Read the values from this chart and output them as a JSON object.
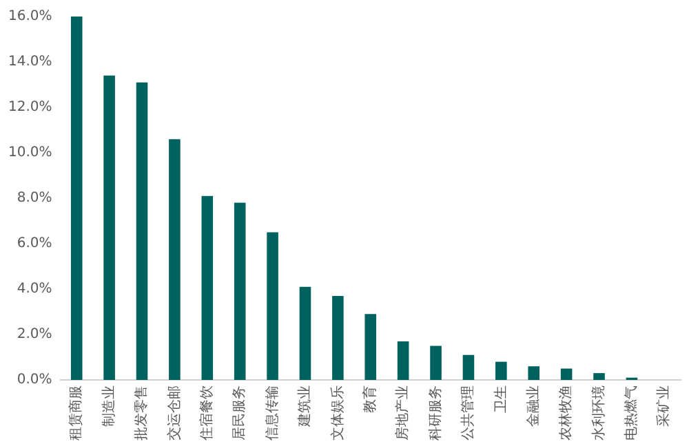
{
  "chart_data": {
    "type": "bar",
    "categories": [
      "租赁商服",
      "制造业",
      "批发零售",
      "交运仓邮",
      "住宿餐饮",
      "居民服务",
      "信息传输",
      "建筑业",
      "文体娱乐",
      "教育",
      "房地产业",
      "科研服务",
      "公共管理",
      "卫生",
      "金融业",
      "农林牧渔",
      "水利环境",
      "电热燃气",
      "采矿业"
    ],
    "values": [
      16.0,
      13.4,
      13.1,
      10.6,
      8.1,
      7.8,
      6.5,
      4.1,
      3.7,
      2.9,
      1.7,
      1.5,
      1.1,
      0.8,
      0.6,
      0.5,
      0.3,
      0.1,
      0
    ],
    "color": "#00625f",
    "ylim": [
      0,
      16
    ],
    "yticks": [
      {
        "value": 0,
        "label": "0.0%"
      },
      {
        "value": 2,
        "label": "2.0%"
      },
      {
        "value": 4,
        "label": "4.0%"
      },
      {
        "value": 6,
        "label": "6.0%"
      },
      {
        "value": 8,
        "label": "8.0%"
      },
      {
        "value": 10,
        "label": "10.0%"
      },
      {
        "value": 12,
        "label": "12.0%"
      },
      {
        "value": 14,
        "label": "14.0%"
      },
      {
        "value": 16,
        "label": "16.0%"
      }
    ],
    "grid": false,
    "legend": false
  }
}
